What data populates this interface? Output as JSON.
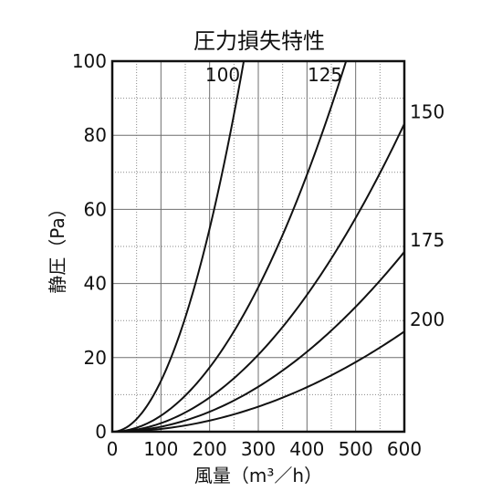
{
  "chart_data": {
    "type": "line",
    "title": "圧力損失特性",
    "xlabel": "風量（m³／h）",
    "ylabel": "静圧（Pa）",
    "xlim": [
      0,
      600
    ],
    "ylim": [
      0,
      100
    ],
    "xticks": [
      0,
      100,
      200,
      300,
      400,
      500,
      600
    ],
    "yticks": [
      0,
      20,
      40,
      60,
      80,
      100
    ],
    "grid": true,
    "series": [
      {
        "name": "100",
        "x": [
          0,
          50,
          100,
          150,
          200,
          250,
          270
        ],
        "y": [
          0,
          3.4,
          13.7,
          30.9,
          54.9,
          85.8,
          100
        ]
      },
      {
        "name": "125",
        "x": [
          0,
          100,
          200,
          300,
          400,
          480
        ],
        "y": [
          0,
          4.3,
          17.4,
          39.1,
          69.4,
          100
        ]
      },
      {
        "name": "150",
        "x": [
          0,
          100,
          200,
          300,
          400,
          500,
          600
        ],
        "y": [
          0,
          2.3,
          9.2,
          20.8,
          37.0,
          57.8,
          83.2
        ]
      },
      {
        "name": "175",
        "x": [
          0,
          100,
          200,
          300,
          400,
          500,
          600
        ],
        "y": [
          0,
          1.35,
          5.4,
          12.1,
          21.6,
          33.7,
          48.5
        ]
      },
      {
        "name": "200",
        "x": [
          0,
          100,
          200,
          300,
          400,
          500,
          600
        ],
        "y": [
          0,
          0.75,
          3.0,
          6.8,
          12.0,
          18.8,
          27.0
        ]
      }
    ]
  }
}
